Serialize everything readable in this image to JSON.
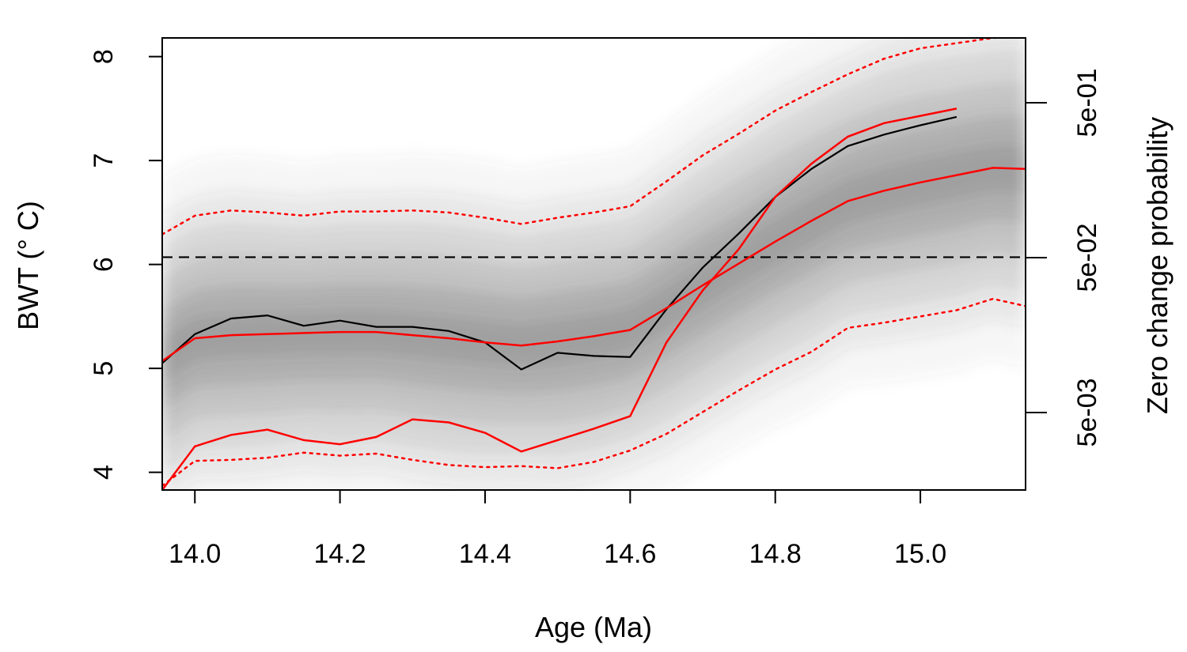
{
  "chart_data": {
    "type": "line",
    "xlabel": "Age (Ma)",
    "ylabel": "BWT (° C)",
    "y2label": "Zero change probability",
    "xlim": [
      13.955,
      15.145
    ],
    "ylim": [
      3.83,
      8.18
    ],
    "x_ticks": [
      "14.0",
      "14.2",
      "14.4",
      "14.6",
      "14.8",
      "15.0"
    ],
    "y_ticks": [
      "4",
      "5",
      "6",
      "7",
      "8"
    ],
    "y2_ticks": [
      "5e-03",
      "5e-02",
      "5e-01"
    ],
    "grid": false,
    "colors": {
      "median": "#000000",
      "model": "#ff0000",
      "band": "#ff0000",
      "threshold": "#000000",
      "ensemble": "#4d4d4d"
    },
    "series": [
      {
        "role": "median",
        "x": [
          13.955,
          14.0,
          14.05,
          14.1,
          14.15,
          14.2,
          14.25,
          14.3,
          14.35,
          14.4,
          14.45,
          14.5,
          14.55,
          14.6,
          14.65,
          14.7,
          14.75,
          14.8,
          14.85,
          14.9,
          14.95,
          15.0,
          15.05
        ],
        "y": [
          5.05,
          5.33,
          5.48,
          5.51,
          5.41,
          5.46,
          5.4,
          5.4,
          5.36,
          5.25,
          4.99,
          5.15,
          5.12,
          5.11,
          5.57,
          5.97,
          6.3,
          6.65,
          6.92,
          7.14,
          7.25,
          7.34,
          7.42
        ]
      },
      {
        "role": "model-upper",
        "x": [
          13.955,
          14.0,
          14.05,
          14.1,
          14.15,
          14.2,
          14.25,
          14.3,
          14.35,
          14.4,
          14.45,
          14.5,
          14.55,
          14.6,
          14.65,
          14.7,
          14.75,
          14.8,
          14.85,
          14.9,
          14.95,
          15.0,
          15.05
        ],
        "y": [
          3.83,
          4.25,
          4.36,
          4.41,
          4.31,
          4.27,
          4.34,
          4.51,
          4.48,
          4.38,
          4.2,
          4.31,
          4.42,
          4.54,
          5.25,
          5.75,
          6.15,
          6.65,
          6.97,
          7.23,
          7.36,
          7.43,
          7.5
        ]
      },
      {
        "role": "model-mean",
        "x": [
          13.955,
          14.0,
          14.05,
          14.1,
          14.15,
          14.2,
          14.25,
          14.3,
          14.35,
          14.4,
          14.45,
          14.5,
          14.55,
          14.6,
          14.65,
          14.7,
          14.75,
          14.8,
          14.85,
          14.9,
          14.95,
          15.0,
          15.05,
          15.1,
          15.145
        ],
        "y": [
          5.07,
          5.29,
          5.32,
          5.33,
          5.34,
          5.35,
          5.35,
          5.32,
          5.29,
          5.25,
          5.22,
          5.26,
          5.31,
          5.37,
          5.58,
          5.8,
          6.01,
          6.22,
          6.42,
          6.61,
          6.71,
          6.79,
          6.86,
          6.93,
          6.92
        ]
      },
      {
        "role": "upper-bound",
        "x": [
          13.955,
          14.0,
          14.05,
          14.1,
          14.15,
          14.2,
          14.25,
          14.3,
          14.35,
          14.4,
          14.45,
          14.5,
          14.55,
          14.6,
          14.65,
          14.7,
          14.75,
          14.8,
          14.85,
          14.9,
          14.95,
          15.0,
          15.05,
          15.1,
          15.145
        ],
        "y": [
          6.29,
          6.47,
          6.52,
          6.5,
          6.47,
          6.51,
          6.51,
          6.52,
          6.5,
          6.45,
          6.39,
          6.45,
          6.5,
          6.56,
          6.8,
          7.05,
          7.26,
          7.48,
          7.66,
          7.83,
          7.98,
          8.08,
          8.13,
          8.18,
          8.2
        ]
      },
      {
        "role": "lower-bound",
        "x": [
          13.955,
          14.0,
          14.05,
          14.1,
          14.15,
          14.2,
          14.25,
          14.3,
          14.35,
          14.4,
          14.45,
          14.5,
          14.55,
          14.6,
          14.65,
          14.7,
          14.75,
          14.8,
          14.85,
          14.9,
          14.95,
          15.0,
          15.05,
          15.1,
          15.145
        ],
        "y": [
          3.87,
          4.11,
          4.12,
          4.14,
          4.19,
          4.16,
          4.18,
          4.12,
          4.07,
          4.05,
          4.06,
          4.04,
          4.1,
          4.21,
          4.37,
          4.58,
          4.79,
          4.99,
          5.16,
          5.39,
          5.44,
          5.5,
          5.56,
          5.67,
          5.6
        ]
      }
    ],
    "threshold": {
      "y": 6.07,
      "style": "dashed"
    }
  }
}
